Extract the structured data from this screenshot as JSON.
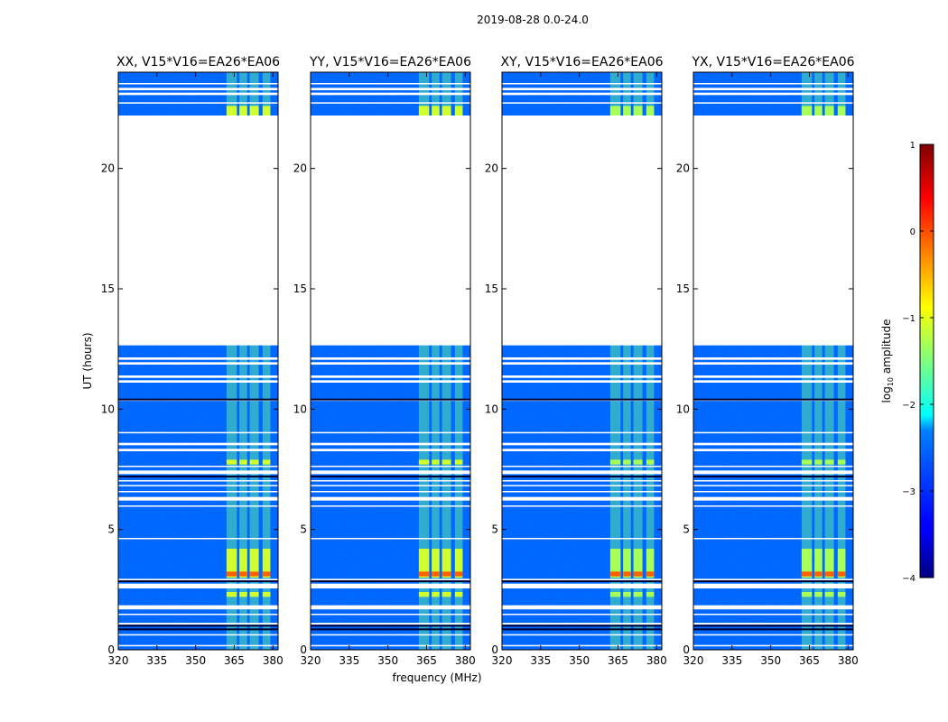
{
  "suptitle": "2019-08-28 0.0-24.0",
  "colors": {
    "blank": "#ffffff",
    "flag_dark": "#000033",
    "jet_low": "#00007f",
    "jet_high": "#7f0000"
  },
  "chart_data": {
    "type": "heatmap",
    "xlabel": "frequency (MHz)",
    "ylabel": "UT (hours)",
    "xlim": [
      320,
      382
    ],
    "ylim": [
      0,
      24
    ],
    "xticks": [
      "320",
      "335",
      "350",
      "365",
      "380"
    ],
    "xtick_values": [
      320,
      335,
      350,
      365,
      380
    ],
    "yticks": [
      "0",
      "5",
      "10",
      "15",
      "20"
    ],
    "ytick_values": [
      0,
      5,
      10,
      15,
      20
    ],
    "colorbar": {
      "label": "log",
      "label_sub": "10",
      "label_rest": " amplitude",
      "range": [
        -4,
        1
      ],
      "ticks": [
        "1",
        "0",
        "−1",
        "−2",
        "−3",
        "−4"
      ],
      "tick_values": [
        1,
        0,
        -1,
        -2,
        -3,
        -4
      ],
      "colormap": "jet"
    },
    "panels": [
      {
        "title": "XX, V15*V16=EA26*EA06",
        "pol": "XX",
        "show_ylabel": true,
        "show_xlabel": false
      },
      {
        "title": "YY, V15*V16=EA26*EA06",
        "pol": "YY",
        "show_ylabel": false,
        "show_xlabel": true
      },
      {
        "title": "XY, V15*V16=EA26*EA06",
        "pol": "XY",
        "show_ylabel": false,
        "show_xlabel": false
      },
      {
        "title": "YX, V15*V16=EA26*EA06",
        "pol": "YX",
        "show_ylabel": false,
        "show_xlabel": false
      }
    ],
    "data_gaps_hours": [
      [
        12.65,
        22.2
      ]
    ],
    "flagged_hours": [
      [
        0.15,
        0.2
      ],
      [
        0.6,
        0.65
      ],
      [
        1.05,
        1.12
      ],
      [
        1.45,
        1.5
      ],
      [
        1.68,
        1.85
      ],
      [
        2.55,
        2.75
      ],
      [
        2.88,
        2.95
      ],
      [
        4.6,
        4.65
      ],
      [
        5.95,
        6.0
      ],
      [
        6.2,
        6.35
      ],
      [
        6.55,
        6.6
      ],
      [
        6.8,
        6.85
      ],
      [
        7.0,
        7.05
      ],
      [
        7.3,
        7.45
      ],
      [
        7.6,
        7.65
      ],
      [
        8.25,
        8.35
      ],
      [
        8.5,
        8.6
      ],
      [
        9.0,
        9.05
      ],
      [
        10.35,
        10.4
      ],
      [
        11.1,
        11.2
      ],
      [
        11.3,
        11.4
      ],
      [
        11.85,
        11.95
      ],
      [
        12.05,
        12.15
      ],
      [
        22.7,
        22.75
      ],
      [
        23.05,
        23.15
      ],
      [
        23.25,
        23.35
      ],
      [
        23.5,
        23.55
      ]
    ],
    "rfi_bands_mhz": [
      [
        362,
        366
      ],
      [
        367,
        370
      ],
      [
        371,
        374.5
      ],
      [
        376,
        379
      ]
    ],
    "bright_hours": [
      [
        2.2,
        2.4
      ],
      [
        3.0,
        4.2
      ],
      [
        7.7,
        7.9
      ],
      [
        22.2,
        22.6
      ]
    ],
    "background_log_amplitude": -3.2,
    "rfi_log_amplitude": -1.6,
    "peak_log_amplitude": -0.1
  }
}
